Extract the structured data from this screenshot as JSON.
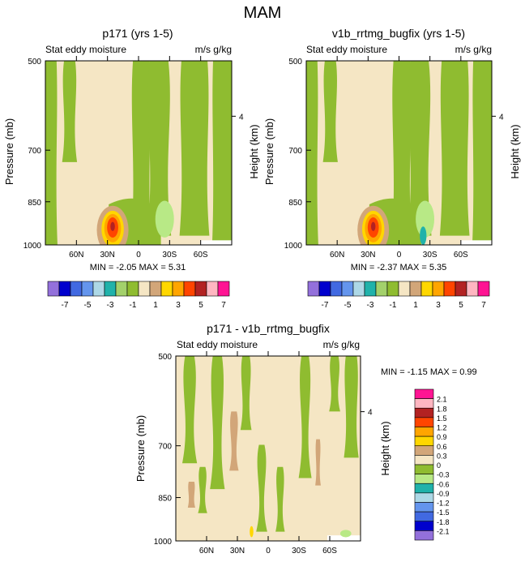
{
  "figure": {
    "title": "MAM"
  },
  "palette": {
    "colors": [
      "#9370db",
      "#0000cd",
      "#4169e1",
      "#6495ed",
      "#add8e6",
      "#20b2aa",
      "#98fb98",
      "#a3d16b",
      "#8fbc30",
      "#f5e6c4",
      "#d2a679",
      "#ffd700",
      "#ffa500",
      "#ff4500",
      "#b22222",
      "#ffb6c1",
      "#ff1493"
    ],
    "background": "#f5e6c4",
    "green": "#8fbc30",
    "light_green": "#a3d16b",
    "pale_green": "#b8e986",
    "tan": "#d2a679",
    "teal": "#20b2aa"
  },
  "colorbar_main": {
    "labels": [
      "-7",
      "-5",
      "-3",
      "-1",
      "1",
      "3",
      "5",
      "7"
    ],
    "colors": [
      "#9370db",
      "#0000cd",
      "#4169e1",
      "#6495ed",
      "#add8e6",
      "#20b2aa",
      "#a3d16b",
      "#8fbc30",
      "#f5e6c4",
      "#d2a679",
      "#ffd700",
      "#ffa500",
      "#ff4500",
      "#b22222",
      "#ffb6c1",
      "#ff1493"
    ]
  },
  "colorbar_diff": {
    "labels": [
      "2.1",
      "1.8",
      "1.5",
      "1.2",
      "0.9",
      "0.6",
      "0.3",
      "0",
      "-0.3",
      "-0.6",
      "-0.9",
      "-1.2",
      "-1.5",
      "-1.8",
      "-2.1"
    ],
    "colors": [
      "#ff1493",
      "#ffb6c1",
      "#b22222",
      "#ff4500",
      "#ffa500",
      "#ffd700",
      "#d2a679",
      "#f5e6c4",
      "#8fbc30",
      "#b8e986",
      "#20b2aa",
      "#add8e6",
      "#6495ed",
      "#4169e1",
      "#0000cd",
      "#9370db"
    ]
  },
  "chart_data": [
    {
      "type": "contour",
      "title": "p171 (yrs 1-5)",
      "left_label": "Stat eddy moisture",
      "right_label": "m/s g/kg",
      "ylabel": "Pressure (mb)",
      "right_axis_label": "Height (km)",
      "right_ticks": [
        "4"
      ],
      "yticks": [
        "500",
        "700",
        "850",
        "1000"
      ],
      "yvalues": [
        500,
        700,
        850,
        1000
      ],
      "xticks": [
        "60N",
        "30N",
        "0",
        "30S",
        "60S"
      ],
      "xvalues": [
        60,
        30,
        0,
        -30,
        -60
      ],
      "xlim": [
        90,
        -90
      ],
      "ylim": [
        1000,
        500
      ],
      "stats": "MIN = -2.05   MAX =  5.31",
      "extrema": {
        "min": -2.05,
        "max": 5.31
      },
      "feature": {
        "lat": 25,
        "p": 930,
        "max": 5.31
      }
    },
    {
      "type": "contour",
      "title": "v1b_rrtmg_bugfix (yrs 1-5)",
      "left_label": "Stat eddy moisture",
      "right_label": "m/s g/kg",
      "ylabel": "Pressure (mb)",
      "right_axis_label": "Height (km)",
      "right_ticks": [
        "4"
      ],
      "yticks": [
        "500",
        "700",
        "850",
        "1000"
      ],
      "yvalues": [
        500,
        700,
        850,
        1000
      ],
      "xticks": [
        "60N",
        "30N",
        "0",
        "30S",
        "60S"
      ],
      "xvalues": [
        60,
        30,
        0,
        -30,
        -60
      ],
      "xlim": [
        90,
        -90
      ],
      "ylim": [
        1000,
        500
      ],
      "stats": "MIN = -2.37   MAX =  5.35",
      "extrema": {
        "min": -2.37,
        "max": 5.35
      },
      "feature": {
        "lat": 25,
        "p": 930,
        "max": 5.35
      }
    },
    {
      "type": "contour",
      "title": "p171 - v1b_rrtmg_bugfix",
      "left_label": "Stat eddy moisture",
      "right_label": "m/s g/kg",
      "ylabel": "Pressure (mb)",
      "right_axis_label": "Height (km)",
      "right_ticks": [
        "4"
      ],
      "yticks": [
        "500",
        "700",
        "850",
        "1000"
      ],
      "yvalues": [
        500,
        700,
        850,
        1000
      ],
      "xticks": [
        "60N",
        "30N",
        "0",
        "30S",
        "60S"
      ],
      "xvalues": [
        60,
        30,
        0,
        -30,
        -60
      ],
      "xlim": [
        90,
        -90
      ],
      "ylim": [
        1000,
        500
      ],
      "stats": "MIN = -1.15   MAX =   0.99",
      "extrema": {
        "min": -1.15,
        "max": 0.99
      }
    }
  ]
}
